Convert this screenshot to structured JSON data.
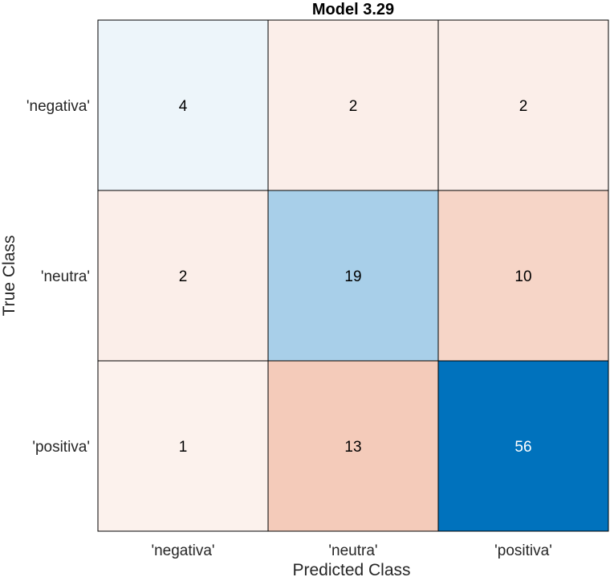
{
  "chart_data": {
    "type": "heatmap",
    "title": "Model 3.29",
    "xlabel": "Predicted Class",
    "ylabel": "True Class",
    "row_labels": [
      "'negativa'",
      "'neutra'",
      "'positiva'"
    ],
    "col_labels": [
      "'negativa'",
      "'neutra'",
      "'positiva'"
    ],
    "values": [
      [
        4,
        2,
        2
      ],
      [
        2,
        19,
        10
      ],
      [
        1,
        13,
        56
      ]
    ],
    "colors": {
      "diagonal_max": "#0072bd",
      "diagonal_min": "#ffffff",
      "offdiag_max": "#d95319",
      "offdiag_min": "#ffffff",
      "grid_line": "#000000",
      "text_dark": "#000000",
      "text_light": "#ffffff"
    }
  }
}
